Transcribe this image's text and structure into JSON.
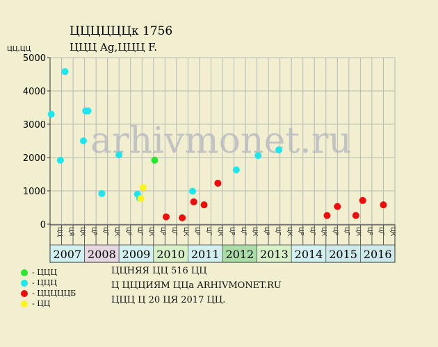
{
  "title_line1": "ЦЦЦЦЦЦк 1756",
  "title_line2": "ЦЦЦ Ag,ЦЦЦ F.",
  "y_unit": "ЦЦ,ЦЦ",
  "watermark": "arhivmonet.ru",
  "colors": {
    "background": "#f1efd0",
    "grid": "#b8b8b8",
    "watermark": "#b9b9c2",
    "gray": "#29e62e",
    "cyan": "#1fe6ee",
    "red": "#ee0d0d",
    "yellow": "#fcf21e"
  },
  "legend": [
    {
      "label": "- ЦЦЦ",
      "color": "#29e62e"
    },
    {
      "label": "- ЦЦЦ",
      "color": "#1fe6ee"
    },
    {
      "label": "- ЦЦЦЦЦБ",
      "color": "#ee0d0d"
    },
    {
      "label": "- ЦЦ",
      "color": "#fcf21e"
    }
  ],
  "info": {
    "line1": "ЦЦНЯЯ ЦЦ 516 ЦЦ",
    "line2": "Ц ЦЦЦИЯМ ЦЦа ARHIVMONET.RU",
    "line3": "ЦЦЦ Ц 20 ЦЯ 2017 ЦЦ."
  },
  "chart_data": {
    "type": "scatter",
    "ylim": [
      0,
      5000
    ],
    "y_ticks": [
      0,
      1000,
      2000,
      3000,
      4000,
      5000
    ],
    "years": [
      {
        "label": "2007",
        "color": "#d3f0f0"
      },
      {
        "label": "2008",
        "color": "#e6d6e2"
      },
      {
        "label": "2009",
        "color": "#d3f0f0"
      },
      {
        "label": "2010",
        "color": "#d8f0c8"
      },
      {
        "label": "2011",
        "color": "#d3f0f0"
      },
      {
        "label": "2012",
        "color": "#a9dca6"
      },
      {
        "label": "2013",
        "color": "#d8f0c8"
      },
      {
        "label": "2014",
        "color": "#d3f0f0"
      },
      {
        "label": "2015",
        "color": "#cde9ea"
      },
      {
        "label": "2016",
        "color": "#cde9ea"
      }
    ],
    "sub_labels": [
      "ЦЦ",
      "ЦЯ",
      "ЦК",
      "ЦР",
      "ЦГ",
      "ЦК",
      "ЦР",
      "ЦГ",
      "ЦК",
      "ЦР",
      "ЦГ",
      "ЦК",
      "ЦР",
      "ЦГ",
      "ЦК",
      "ЦР",
      "ЦГ",
      "ЦК",
      "ЦР",
      "ЦГ",
      "ЦК",
      "ЦР",
      "ЦГ",
      "ЦК",
      "ЦР",
      "ЦГ",
      "ЦК",
      "ЦР",
      "ЦГ",
      "ЦК"
    ],
    "series": [
      {
        "name": "ЦЦЦ",
        "color": "#29e62e",
        "points": [
          {
            "x": 9.1,
            "y": 1920
          }
        ]
      },
      {
        "name": "ЦЦЦ",
        "color": "#1fe6ee",
        "points": [
          {
            "x": 0.1,
            "y": 3300
          },
          {
            "x": 0.9,
            "y": 1920
          },
          {
            "x": 1.3,
            "y": 4580
          },
          {
            "x": 2.9,
            "y": 2500
          },
          {
            "x": 3.1,
            "y": 3400
          },
          {
            "x": 3.3,
            "y": 3400
          },
          {
            "x": 4.5,
            "y": 920
          },
          {
            "x": 6.0,
            "y": 2080
          },
          {
            "x": 7.6,
            "y": 900
          },
          {
            "x": 7.8,
            "y": 780
          },
          {
            "x": 12.4,
            "y": 990
          },
          {
            "x": 16.2,
            "y": 1630
          },
          {
            "x": 18.1,
            "y": 2060
          },
          {
            "x": 19.9,
            "y": 2230
          }
        ]
      },
      {
        "name": "ЦЦЦЦЦБ",
        "color": "#ee0d0d",
        "points": [
          {
            "x": 10.1,
            "y": 220
          },
          {
            "x": 11.5,
            "y": 190
          },
          {
            "x": 12.5,
            "y": 670
          },
          {
            "x": 13.4,
            "y": 580
          },
          {
            "x": 14.6,
            "y": 1230
          },
          {
            "x": 24.1,
            "y": 260
          },
          {
            "x": 25.0,
            "y": 530
          },
          {
            "x": 26.6,
            "y": 260
          },
          {
            "x": 27.2,
            "y": 710
          },
          {
            "x": 29.0,
            "y": 580
          }
        ]
      },
      {
        "name": "ЦЦ",
        "color": "#fcf21e",
        "points": [
          {
            "x": 7.9,
            "y": 770
          },
          {
            "x": 8.1,
            "y": 1100
          }
        ]
      }
    ]
  }
}
